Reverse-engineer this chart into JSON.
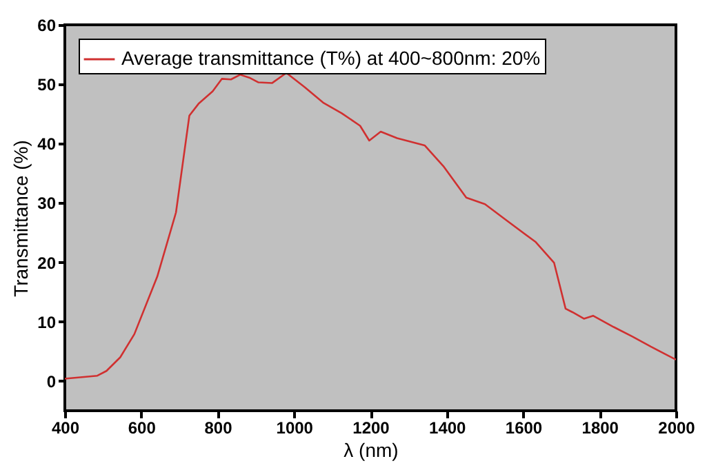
{
  "chart_data": {
    "type": "line",
    "xlabel": "λ (nm)",
    "ylabel": "Transmittance (%)",
    "xlim": [
      400,
      2000
    ],
    "xticks": [
      400,
      600,
      800,
      1000,
      1200,
      1400,
      1600,
      1800,
      2000
    ],
    "ylim": [
      -5,
      60
    ],
    "yticks": [
      0,
      10,
      20,
      30,
      40,
      50,
      60
    ],
    "grid": false,
    "legend": "top left",
    "series": [
      {
        "name": "Average transmittance (T%) at 400~800nm: 20%",
        "color": "#d03030",
        "x": [
          400,
          485,
          509,
          545,
          582,
          642,
          691,
          726,
          750,
          787,
          811,
          835,
          859,
          883,
          907,
          943,
          980,
          1028,
          1076,
          1125,
          1173,
          1197,
          1227,
          1270,
          1342,
          1391,
          1451,
          1500,
          1560,
          1633,
          1681,
          1711,
          1729,
          1759,
          1783,
          1837,
          1886,
          1934,
          2000
        ],
        "values": [
          0.4,
          0.9,
          1.7,
          4.0,
          7.9,
          17.6,
          28.4,
          44.7,
          46.7,
          48.8,
          50.9,
          50.8,
          51.6,
          51.1,
          50.3,
          50.2,
          51.9,
          49.5,
          46.9,
          45.1,
          43.0,
          40.5,
          42.0,
          40.9,
          39.7,
          36.2,
          30.9,
          29.8,
          26.9,
          23.4,
          19.9,
          12.2,
          11.6,
          10.5,
          11.0,
          9.1,
          7.5,
          5.8,
          3.6
        ]
      }
    ]
  }
}
